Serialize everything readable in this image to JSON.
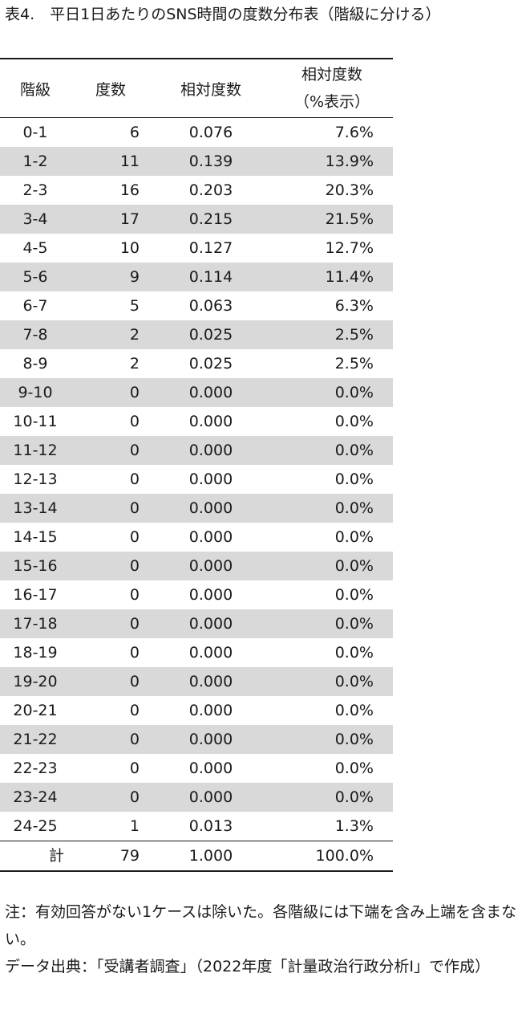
{
  "title": "表4.　平日1日あたりのSNS時間の度数分布表（階級に分ける）",
  "table": {
    "headers": {
      "class": "階級",
      "count": "度数",
      "relative": "相対度数",
      "percent_line1": "相対度数",
      "percent_line2": "（%表示）"
    },
    "rows": [
      {
        "cls": "0-1",
        "count": "6",
        "rel": "0.076",
        "pct": "7.6%"
      },
      {
        "cls": "1-2",
        "count": "11",
        "rel": "0.139",
        "pct": "13.9%"
      },
      {
        "cls": "2-3",
        "count": "16",
        "rel": "0.203",
        "pct": "20.3%"
      },
      {
        "cls": "3-4",
        "count": "17",
        "rel": "0.215",
        "pct": "21.5%"
      },
      {
        "cls": "4-5",
        "count": "10",
        "rel": "0.127",
        "pct": "12.7%"
      },
      {
        "cls": "5-6",
        "count": "9",
        "rel": "0.114",
        "pct": "11.4%"
      },
      {
        "cls": "6-7",
        "count": "5",
        "rel": "0.063",
        "pct": "6.3%"
      },
      {
        "cls": "7-8",
        "count": "2",
        "rel": "0.025",
        "pct": "2.5%"
      },
      {
        "cls": "8-9",
        "count": "2",
        "rel": "0.025",
        "pct": "2.5%"
      },
      {
        "cls": "9-10",
        "count": "0",
        "rel": "0.000",
        "pct": "0.0%"
      },
      {
        "cls": "10-11",
        "count": "0",
        "rel": "0.000",
        "pct": "0.0%"
      },
      {
        "cls": "11-12",
        "count": "0",
        "rel": "0.000",
        "pct": "0.0%"
      },
      {
        "cls": "12-13",
        "count": "0",
        "rel": "0.000",
        "pct": "0.0%"
      },
      {
        "cls": "13-14",
        "count": "0",
        "rel": "0.000",
        "pct": "0.0%"
      },
      {
        "cls": "14-15",
        "count": "0",
        "rel": "0.000",
        "pct": "0.0%"
      },
      {
        "cls": "15-16",
        "count": "0",
        "rel": "0.000",
        "pct": "0.0%"
      },
      {
        "cls": "16-17",
        "count": "0",
        "rel": "0.000",
        "pct": "0.0%"
      },
      {
        "cls": "17-18",
        "count": "0",
        "rel": "0.000",
        "pct": "0.0%"
      },
      {
        "cls": "18-19",
        "count": "0",
        "rel": "0.000",
        "pct": "0.0%"
      },
      {
        "cls": "19-20",
        "count": "0",
        "rel": "0.000",
        "pct": "0.0%"
      },
      {
        "cls": "20-21",
        "count": "0",
        "rel": "0.000",
        "pct": "0.0%"
      },
      {
        "cls": "21-22",
        "count": "0",
        "rel": "0.000",
        "pct": "0.0%"
      },
      {
        "cls": "22-23",
        "count": "0",
        "rel": "0.000",
        "pct": "0.0%"
      },
      {
        "cls": "23-24",
        "count": "0",
        "rel": "0.000",
        "pct": "0.0%"
      },
      {
        "cls": "24-25",
        "count": "1",
        "rel": "0.013",
        "pct": "1.3%"
      }
    ],
    "total": {
      "label": "計",
      "count": "79",
      "rel": "1.000",
      "pct": "100.0%"
    }
  },
  "notes": {
    "note": "注：有効回答がない1ケースは除いた。各階級には下端を含み上端を含まない。",
    "source": "データ出典：「受講者調査」（2022年度「計量政治行政分析Ⅰ」で作成）"
  },
  "colors": {
    "stripe": "#d9d9d9",
    "rule": "#1a1a1a"
  }
}
